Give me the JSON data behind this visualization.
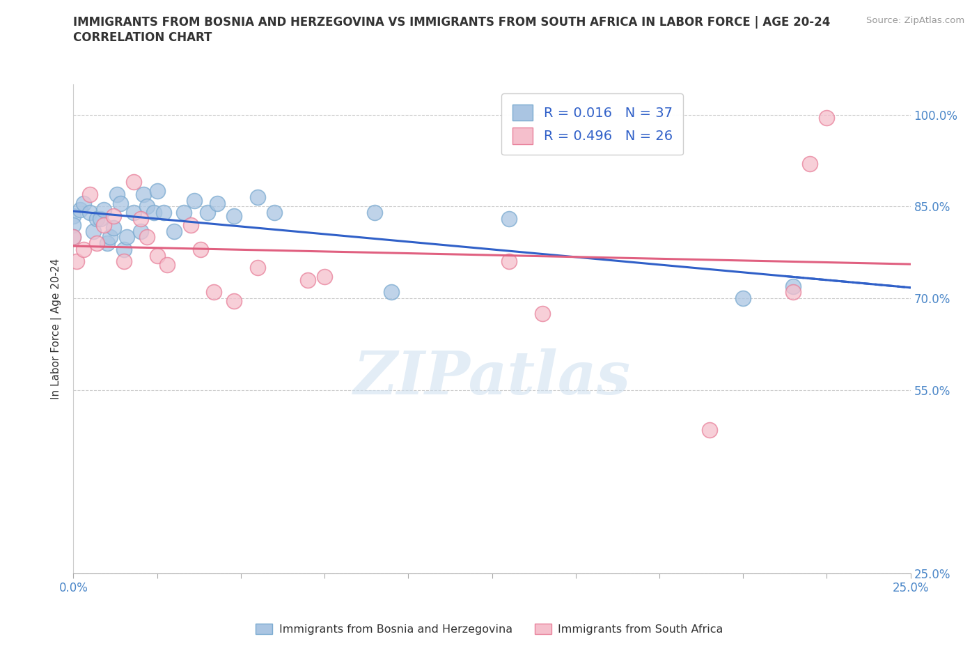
{
  "title_line1": "IMMIGRANTS FROM BOSNIA AND HERZEGOVINA VS IMMIGRANTS FROM SOUTH AFRICA IN LABOR FORCE | AGE 20-24",
  "title_line2": "CORRELATION CHART",
  "source_text": "Source: ZipAtlas.com",
  "ylabel": "In Labor Force | Age 20-24",
  "xlim": [
    0.0,
    0.25
  ],
  "ylim": [
    0.25,
    1.05
  ],
  "ytick_values": [
    0.25,
    0.55,
    0.7,
    0.85,
    1.0
  ],
  "ytick_labels": [
    "25.0%",
    "55.0%",
    "70.0%",
    "85.0%",
    "100.0%"
  ],
  "xtick_values": [
    0.0,
    0.025,
    0.05,
    0.075,
    0.1,
    0.125,
    0.15,
    0.175,
    0.2,
    0.225,
    0.25
  ],
  "bosnia_color": "#aac5e2",
  "bosnia_edge_color": "#7aaad0",
  "southafrica_color": "#f5bfcc",
  "southafrica_edge_color": "#e8809a",
  "bosnia_R": 0.016,
  "bosnia_N": 37,
  "southafrica_R": 0.496,
  "southafrica_N": 26,
  "bosnia_line_color": "#3060c8",
  "southafrica_line_color": "#e06080",
  "watermark": "ZIPatlas",
  "watermark_color": "#ccdff0",
  "grid_color": "#cccccc",
  "tick_color": "#4a86c8",
  "label_color": "#333333",
  "source_color": "#999999",
  "bosnia_x": [
    0.0,
    0.0,
    0.0,
    0.002,
    0.003,
    0.005,
    0.006,
    0.007,
    0.008,
    0.009,
    0.01,
    0.011,
    0.012,
    0.013,
    0.014,
    0.015,
    0.016,
    0.018,
    0.02,
    0.021,
    0.022,
    0.024,
    0.025,
    0.027,
    0.03,
    0.033,
    0.036,
    0.04,
    0.043,
    0.048,
    0.055,
    0.06,
    0.09,
    0.095,
    0.13,
    0.2,
    0.215
  ],
  "bosnia_y": [
    0.835,
    0.82,
    0.8,
    0.845,
    0.855,
    0.84,
    0.81,
    0.83,
    0.83,
    0.845,
    0.79,
    0.8,
    0.815,
    0.87,
    0.855,
    0.78,
    0.8,
    0.84,
    0.81,
    0.87,
    0.85,
    0.84,
    0.875,
    0.84,
    0.81,
    0.84,
    0.86,
    0.84,
    0.855,
    0.835,
    0.865,
    0.84,
    0.84,
    0.71,
    0.83,
    0.7,
    0.72
  ],
  "southafrica_x": [
    0.0,
    0.001,
    0.003,
    0.005,
    0.007,
    0.009,
    0.012,
    0.015,
    0.018,
    0.02,
    0.022,
    0.025,
    0.028,
    0.035,
    0.038,
    0.042,
    0.048,
    0.055,
    0.07,
    0.075,
    0.13,
    0.14,
    0.19,
    0.215,
    0.22,
    0.225
  ],
  "southafrica_y": [
    0.8,
    0.76,
    0.78,
    0.87,
    0.79,
    0.82,
    0.835,
    0.76,
    0.89,
    0.83,
    0.8,
    0.77,
    0.755,
    0.82,
    0.78,
    0.71,
    0.695,
    0.75,
    0.73,
    0.735,
    0.76,
    0.675,
    0.485,
    0.71,
    0.92,
    0.995
  ]
}
